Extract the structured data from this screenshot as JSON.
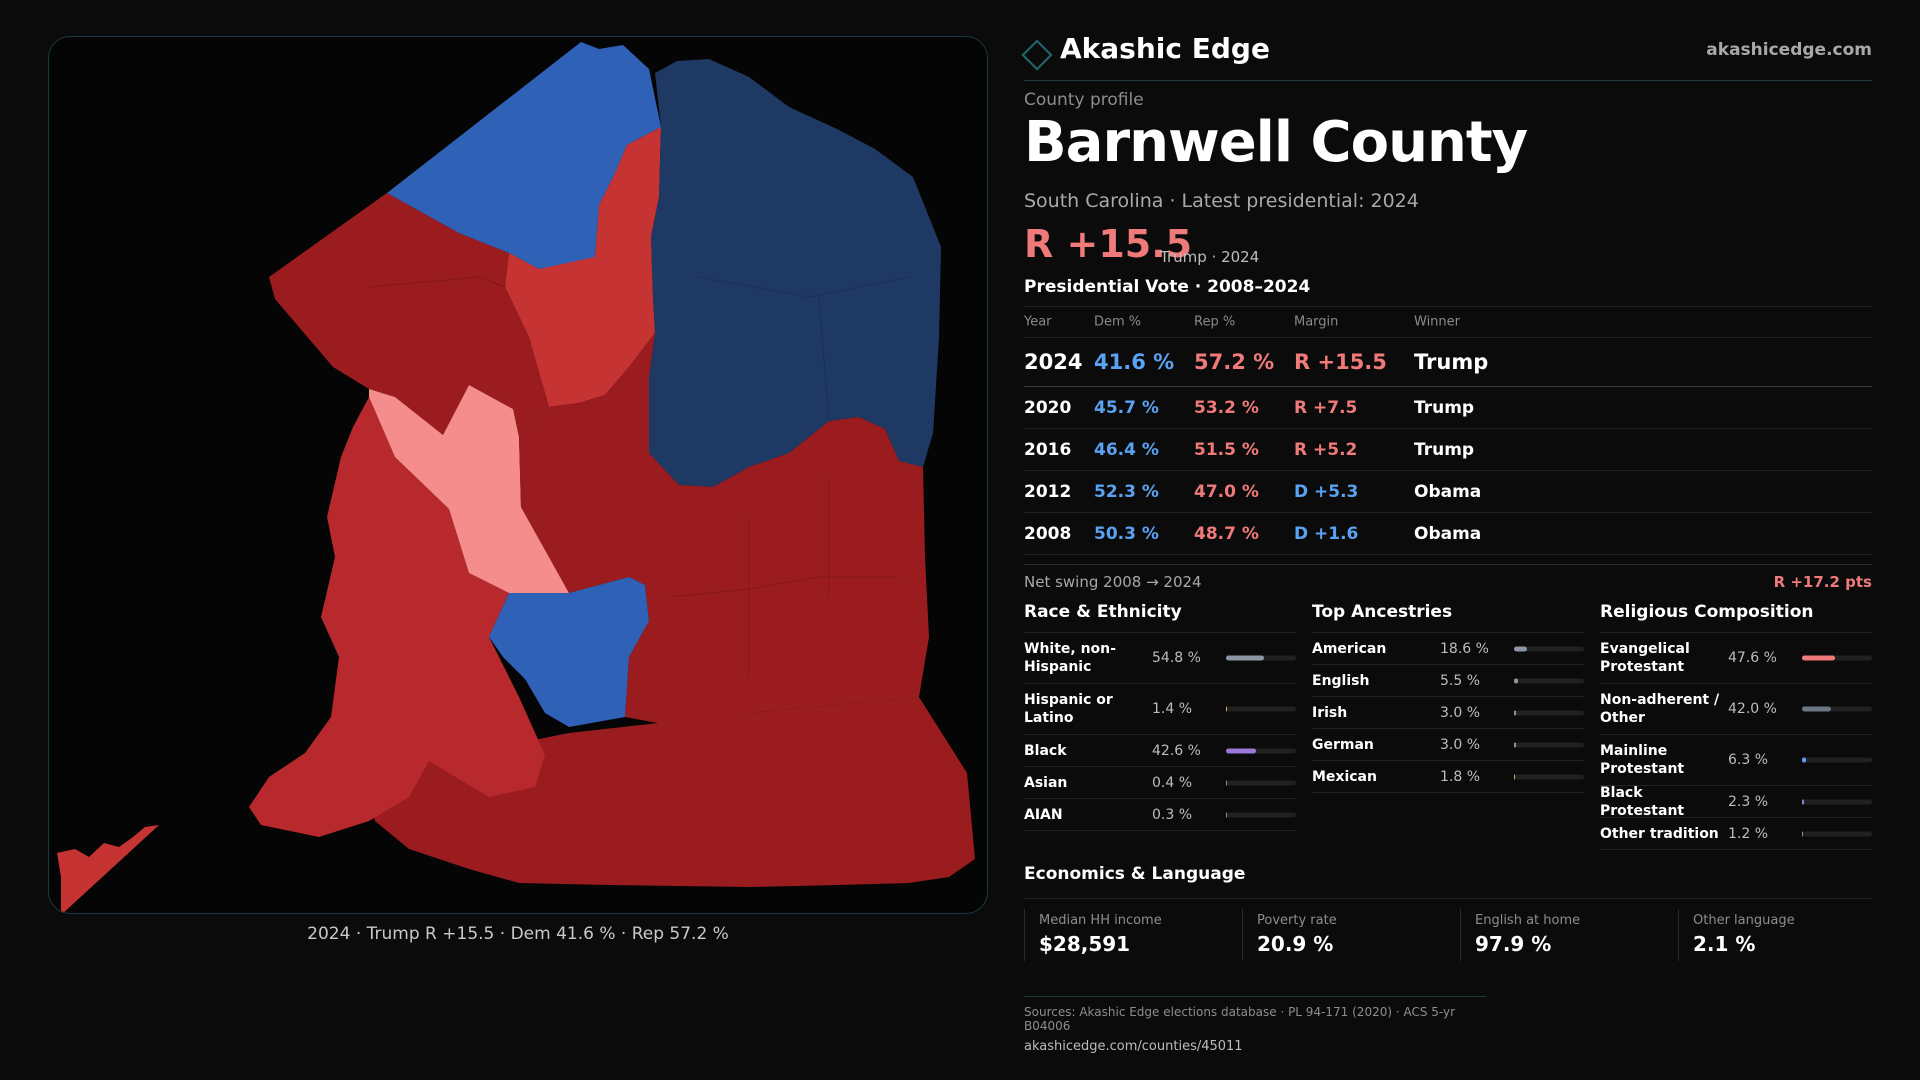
{
  "map": {
    "colors": {
      "dem_strong": "#1e3a64",
      "dem_lean": "#2f61b7",
      "rep_strong": "#9b1c1f",
      "rep_medium": "#b7292c",
      "rep_light": "#c63333",
      "rep_lean": "#f58d8d"
    },
    "caption": "2024 · Trump R +15.5 · Dem 41.6 % · Rep 57.2 %"
  },
  "header": {
    "brand": "Akashic Edge",
    "site": "akashicedge.com",
    "logo_icon": "diamond-icon"
  },
  "profile": {
    "eyebrow": "County profile",
    "title": "Barnwell County",
    "subtitle": "South Carolina · Latest presidential: 2024",
    "margin": "R +15.5",
    "margin_note": "Trump · 2024"
  },
  "vote": {
    "title": "Presidential Vote · 2008–2024",
    "headers": [
      "Year",
      "Dem %",
      "Rep %",
      "Margin",
      "Winner"
    ],
    "rows": [
      {
        "year": "2024",
        "dem": "41.6 %",
        "rep": "57.2 %",
        "margin": "R +15.5",
        "winner": "Trump"
      },
      {
        "year": "2020",
        "dem": "45.7 %",
        "rep": "53.2 %",
        "margin": "R +7.5",
        "winner": "Trump"
      },
      {
        "year": "2016",
        "dem": "46.4 %",
        "rep": "51.5 %",
        "margin": "R +5.2",
        "winner": "Trump"
      },
      {
        "year": "2012",
        "dem": "52.3 %",
        "rep": "47.0 %",
        "margin": "D +5.3",
        "winner": "Obama"
      },
      {
        "year": "2008",
        "dem": "50.3 %",
        "rep": "48.7 %",
        "margin": "D +1.6",
        "winner": "Obama"
      }
    ],
    "swing_label": "Net swing 2008 → 2024",
    "swing_value": "R +17.2 pts"
  },
  "race": {
    "title": "Race & Ethnicity",
    "rows": [
      {
        "label": "White, non-Hispanic",
        "value": "54.8 %",
        "share": 54.8,
        "color": "#8c96a3"
      },
      {
        "label": "Hispanic or Latino",
        "value": "1.4 %",
        "share": 1.4,
        "color": "#d9a25a"
      },
      {
        "label": "Black",
        "value": "42.6 %",
        "share": 42.6,
        "color": "#9a7ad8"
      },
      {
        "label": "Asian",
        "value": "0.4 %",
        "share": 0.4,
        "color": "#8c96a3"
      },
      {
        "label": "AIAN",
        "value": "0.3 %",
        "share": 0.3,
        "color": "#8c96a3"
      }
    ]
  },
  "ancestry": {
    "title": "Top Ancestries",
    "rows": [
      {
        "label": "American",
        "value": "18.6 %",
        "share": 18.6,
        "color": "#8c96a3"
      },
      {
        "label": "English",
        "value": "5.5 %",
        "share": 5.5,
        "color": "#8c96a3"
      },
      {
        "label": "Irish",
        "value": "3.0 %",
        "share": 3.0,
        "color": "#8c96a3"
      },
      {
        "label": "German",
        "value": "3.0 %",
        "share": 3.0,
        "color": "#8c96a3"
      },
      {
        "label": "Mexican",
        "value": "1.8 %",
        "share": 1.8,
        "color": "#d9a25a"
      }
    ]
  },
  "religion": {
    "title": "Religious Composition",
    "rows": [
      {
        "label": "Evangelical Protestant",
        "value": "47.6 %",
        "share": 47.6,
        "color": "#f07a7a"
      },
      {
        "label": "Non-adherent / Other",
        "value": "42.0 %",
        "share": 42.0,
        "color": "#6c7686"
      },
      {
        "label": "Mainline Protestant",
        "value": "6.3 %",
        "share": 6.3,
        "color": "#5aa2f2"
      },
      {
        "label": "Black Protestant",
        "value": "2.3 %",
        "share": 2.3,
        "color": "#9a7ad8"
      },
      {
        "label": "Other tradition",
        "value": "1.2 %",
        "share": 1.2,
        "color": "#8c96a3"
      }
    ]
  },
  "economics": {
    "title": "Economics & Language",
    "items": [
      {
        "label": "Median HH income",
        "value": "$28,591"
      },
      {
        "label": "Poverty rate",
        "value": "20.9 %"
      },
      {
        "label": "English at home",
        "value": "97.9 %"
      },
      {
        "label": "Other language",
        "value": "2.1 %"
      }
    ]
  },
  "sources": {
    "line1": "Sources: Akashic Edge elections database · PL 94-171 (2020) · ACS 5-yr B04006",
    "line2": "akashicedge.com/counties/45011"
  }
}
